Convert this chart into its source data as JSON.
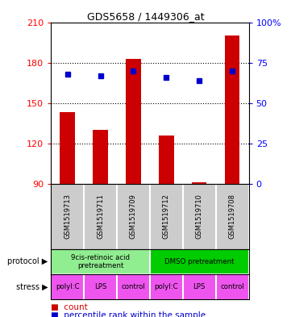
{
  "title": "GDS5658 / 1449306_at",
  "samples": [
    "GSM1519713",
    "GSM1519711",
    "GSM1519709",
    "GSM1519712",
    "GSM1519710",
    "GSM1519708"
  ],
  "bar_values": [
    143,
    130,
    183,
    126,
    91,
    200
  ],
  "bar_bottom": 90,
  "percentile_values": [
    68,
    67,
    70,
    66,
    64,
    70
  ],
  "ylim_left": [
    90,
    210
  ],
  "ylim_right": [
    0,
    100
  ],
  "yticks_left": [
    90,
    120,
    150,
    180,
    210
  ],
  "yticks_right": [
    0,
    25,
    50,
    75,
    100
  ],
  "bar_color": "#cc0000",
  "percentile_color": "#0000cc",
  "protocol_labels": [
    "9cis-retinoic acid\npretreatment",
    "DMSO pretreatment"
  ],
  "protocol_color_1": "#90ee90",
  "protocol_color_2": "#00cc00",
  "stress_labels": [
    "polyI:C",
    "LPS",
    "control",
    "polyI:C",
    "LPS",
    "control"
  ],
  "stress_color": "#ee55ee",
  "sample_bg": "#cccccc",
  "left_label_protocol": "protocol",
  "left_label_stress": "stress",
  "legend_count_label": "count",
  "legend_percentile_label": "percentile rank within the sample",
  "legend_count_color": "#cc0000",
  "legend_percentile_color": "#0000cc"
}
